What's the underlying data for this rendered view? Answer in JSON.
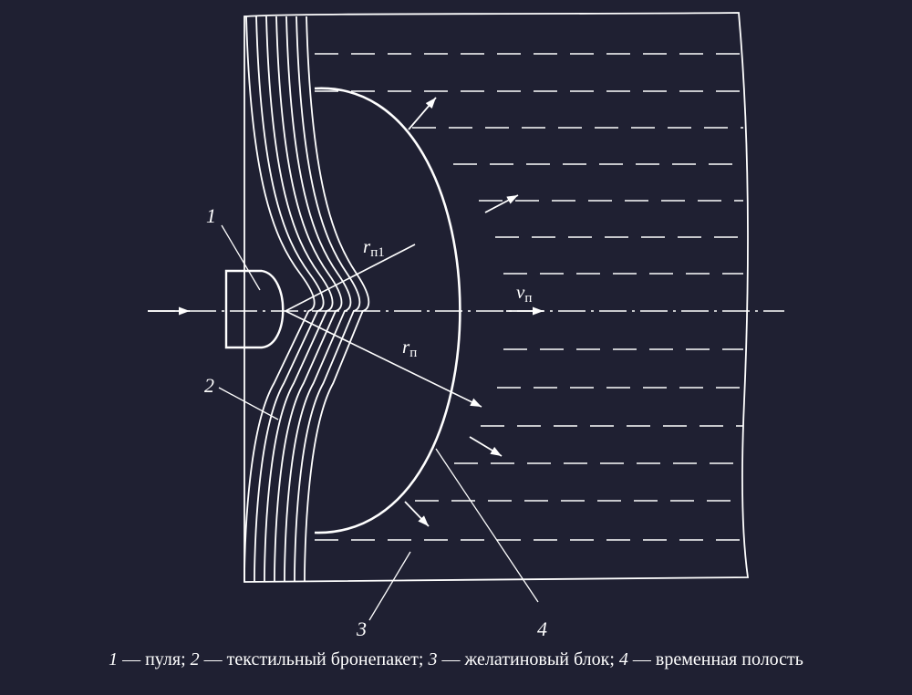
{
  "colors": {
    "background": "#1f2032",
    "stroke": "#ffffff"
  },
  "diagram": {
    "labels": {
      "part1": "1",
      "part2": "2",
      "part3": "3",
      "part4": "4",
      "radius_r1_main": "r",
      "radius_r1_sub": "п1",
      "radius_r_main": "r",
      "radius_r_sub": "п",
      "velocity_main": "v",
      "velocity_sub": "п"
    }
  },
  "caption": {
    "items": [
      {
        "num": "1",
        "text": " — пуля; "
      },
      {
        "num": "2",
        "text": " — текстильный бронепакет; "
      },
      {
        "num": "3",
        "text": " — желатиновый блок; "
      },
      {
        "num": "4",
        "text": " — временная полость"
      }
    ]
  }
}
